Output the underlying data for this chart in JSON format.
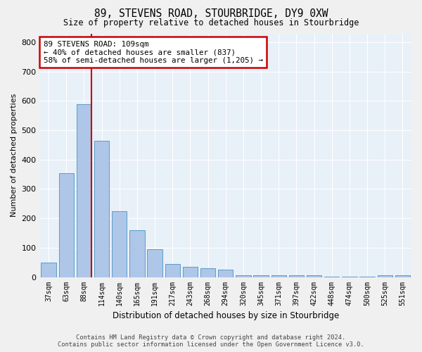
{
  "title1": "89, STEVENS ROAD, STOURBRIDGE, DY9 0XW",
  "title2": "Size of property relative to detached houses in Stourbridge",
  "xlabel": "Distribution of detached houses by size in Stourbridge",
  "ylabel": "Number of detached properties",
  "categories": [
    "37sqm",
    "63sqm",
    "88sqm",
    "114sqm",
    "140sqm",
    "165sqm",
    "191sqm",
    "217sqm",
    "243sqm",
    "268sqm",
    "294sqm",
    "320sqm",
    "345sqm",
    "371sqm",
    "397sqm",
    "422sqm",
    "448sqm",
    "474sqm",
    "500sqm",
    "525sqm",
    "551sqm"
  ],
  "values": [
    50,
    355,
    590,
    465,
    225,
    160,
    95,
    45,
    35,
    30,
    25,
    5,
    5,
    5,
    5,
    5,
    2,
    2,
    2,
    5,
    5
  ],
  "bar_color": "#aec6e8",
  "bar_edge_color": "#5a9ec8",
  "bg_color": "#e8f0f8",
  "grid_color": "#ffffff",
  "vline_x_index": 2.42,
  "vline_color": "#cc0000",
  "annotation_text": "89 STEVENS ROAD: 109sqm\n← 40% of detached houses are smaller (837)\n58% of semi-detached houses are larger (1,205) →",
  "annotation_box_color": "#cc0000",
  "footer1": "Contains HM Land Registry data © Crown copyright and database right 2024.",
  "footer2": "Contains public sector information licensed under the Open Government Licence v3.0.",
  "ylim": [
    0,
    830
  ],
  "yticks": [
    0,
    100,
    200,
    300,
    400,
    500,
    600,
    700,
    800
  ]
}
